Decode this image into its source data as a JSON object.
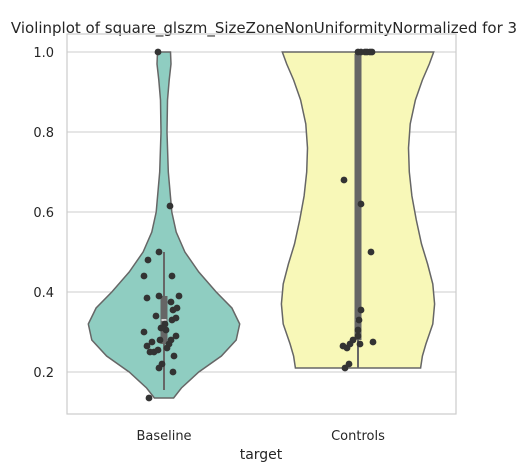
{
  "chart_data": {
    "type": "violin",
    "title": "Violinplot of square_glszm_SizeZoneNonUniformityNormalized for 3",
    "xlabel": "target",
    "ylabel": "",
    "categories": [
      "Baseline",
      "Controls"
    ],
    "ylim": [
      0.095,
      1.045
    ],
    "yticks": [
      0.2,
      0.4,
      0.6,
      0.8,
      1.0
    ],
    "ytick_labels": [
      "0.2",
      "0.4",
      "0.6",
      "0.8",
      "1.0"
    ],
    "grid": true,
    "colors": {
      "Baseline": "#8fcdc1",
      "Controls": "#f8f8b8",
      "edge": "#666666",
      "points": "#333333",
      "grid": "#cccccc"
    },
    "violins": [
      {
        "name": "Baseline",
        "ymin": 0.135,
        "ymax": 1.0,
        "half_width": [
          [
            0.135,
            0.11
          ],
          [
            0.16,
            0.2
          ],
          [
            0.2,
            0.4
          ],
          [
            0.24,
            0.66
          ],
          [
            0.28,
            0.83
          ],
          [
            0.32,
            0.87
          ],
          [
            0.36,
            0.78
          ],
          [
            0.4,
            0.6
          ],
          [
            0.45,
            0.4
          ],
          [
            0.5,
            0.24
          ],
          [
            0.55,
            0.14
          ],
          [
            0.6,
            0.09
          ],
          [
            0.7,
            0.05
          ],
          [
            0.8,
            0.035
          ],
          [
            0.88,
            0.04
          ],
          [
            0.93,
            0.06
          ],
          [
            0.97,
            0.08
          ],
          [
            1.0,
            0.075
          ]
        ],
        "box": {
          "q1": 0.27,
          "median": 0.33,
          "q3": 0.39,
          "whisker_low": 0.155,
          "whisker_high": 0.5
        },
        "points": [
          [
            0.135,
            -0.15
          ],
          [
            0.2,
            0.09
          ],
          [
            0.21,
            -0.05
          ],
          [
            0.22,
            -0.02
          ],
          [
            0.24,
            0.1
          ],
          [
            0.25,
            -0.14
          ],
          [
            0.25,
            -0.1
          ],
          [
            0.255,
            -0.06
          ],
          [
            0.26,
            0.03
          ],
          [
            0.265,
            -0.17
          ],
          [
            0.27,
            0.05
          ],
          [
            0.275,
            -0.12
          ],
          [
            0.28,
            -0.04
          ],
          [
            0.28,
            0.07
          ],
          [
            0.29,
            0.12
          ],
          [
            0.3,
            -0.2
          ],
          [
            0.305,
            0.02
          ],
          [
            0.31,
            -0.03
          ],
          [
            0.32,
            0.01
          ],
          [
            0.33,
            0.08
          ],
          [
            0.335,
            0.12
          ],
          [
            0.34,
            -0.08
          ],
          [
            0.355,
            0.09
          ],
          [
            0.36,
            0.13
          ],
          [
            0.375,
            0.07
          ],
          [
            0.385,
            -0.17
          ],
          [
            0.39,
            -0.05
          ],
          [
            0.39,
            0.15
          ],
          [
            0.44,
            -0.2
          ],
          [
            0.44,
            0.08
          ],
          [
            0.48,
            -0.16
          ],
          [
            0.5,
            -0.05
          ],
          [
            0.615,
            0.06
          ],
          [
            1.0,
            -0.06
          ]
        ]
      },
      {
        "name": "Controls",
        "ymin": 0.21,
        "ymax": 1.0,
        "half_width": [
          [
            0.21,
            0.72
          ],
          [
            0.24,
            0.74
          ],
          [
            0.27,
            0.78
          ],
          [
            0.32,
            0.86
          ],
          [
            0.37,
            0.88
          ],
          [
            0.42,
            0.86
          ],
          [
            0.47,
            0.8
          ],
          [
            0.52,
            0.73
          ],
          [
            0.58,
            0.67
          ],
          [
            0.64,
            0.62
          ],
          [
            0.7,
            0.59
          ],
          [
            0.76,
            0.58
          ],
          [
            0.82,
            0.6
          ],
          [
            0.88,
            0.66
          ],
          [
            0.93,
            0.74
          ],
          [
            0.97,
            0.82
          ],
          [
            1.0,
            0.87
          ]
        ],
        "box": {
          "q1": 0.28,
          "median": 0.33,
          "q3": 0.995,
          "whisker_low": 0.21,
          "whisker_high": 1.0
        },
        "points": [
          [
            0.21,
            -0.13
          ],
          [
            0.22,
            -0.09
          ],
          [
            0.26,
            -0.11
          ],
          [
            0.265,
            -0.15
          ],
          [
            0.27,
            0.02
          ],
          [
            0.27,
            -0.08
          ],
          [
            0.275,
            0.15
          ],
          [
            0.28,
            -0.05
          ],
          [
            0.29,
            0.0
          ],
          [
            0.305,
            0.0
          ],
          [
            0.33,
            0.01
          ],
          [
            0.355,
            0.03
          ],
          [
            0.5,
            0.13
          ],
          [
            0.62,
            0.03
          ],
          [
            0.68,
            -0.14
          ],
          [
            1.0,
            0.0
          ],
          [
            1.0,
            0.03
          ],
          [
            1.0,
            0.07
          ],
          [
            1.0,
            0.09
          ],
          [
            1.0,
            0.12
          ],
          [
            1.0,
            0.14
          ]
        ]
      }
    ]
  }
}
